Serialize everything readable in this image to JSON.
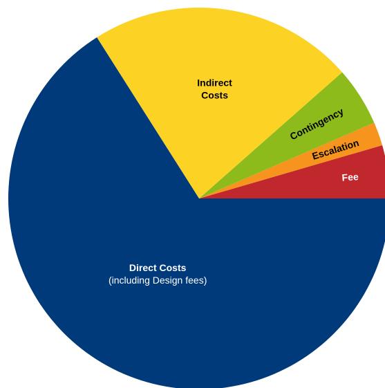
{
  "chart_data": {
    "type": "pie",
    "title": "",
    "start_angle_deg": 0,
    "direction": "counterclockwise",
    "slices": [
      {
        "label": "Fee",
        "sublabel": "",
        "value": 4.5,
        "color": "#c1282d",
        "text_color": "#ffffff"
      },
      {
        "label": "Escalation",
        "sublabel": "",
        "value": 2.0,
        "color": "#f7941d",
        "text_color": "#000000"
      },
      {
        "label": "Contingency",
        "sublabel": "",
        "value": 5.0,
        "color": "#8dbb1c",
        "text_color": "#000000"
      },
      {
        "label": "Indirect",
        "label_line2": "Costs",
        "sublabel": "",
        "value": 22.5,
        "color": "#fcd224",
        "text_color": "#000000"
      },
      {
        "label": "Direct Costs",
        "sublabel": "(including Design fees)",
        "value": 66.0,
        "color": "#003a7a",
        "text_color": "#ffffff"
      }
    ]
  }
}
